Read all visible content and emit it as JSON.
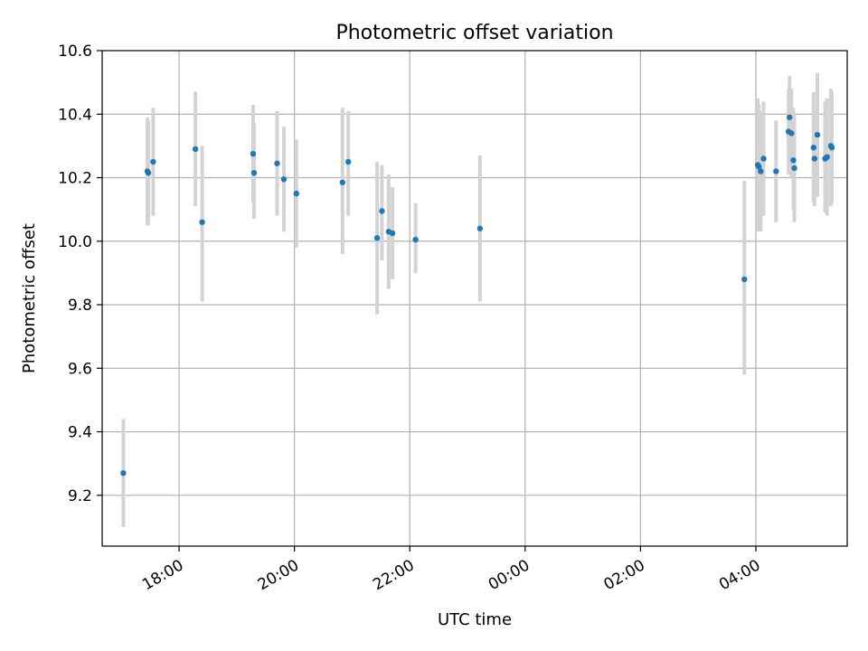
{
  "chart_data": {
    "type": "scatter",
    "title": "Photometric offset variation",
    "xlabel": "UTC time",
    "ylabel": "Photometric offset",
    "x_type": "time",
    "xlim": [
      "16:40",
      "05:35"
    ],
    "ylim": [
      9.04,
      10.6
    ],
    "x_ticks": [
      "18:00",
      "20:00",
      "22:00",
      "00:00",
      "02:00",
      "04:00"
    ],
    "y_ticks": [
      9.2,
      9.4,
      9.6,
      9.8,
      10.0,
      10.2,
      10.4,
      10.6
    ],
    "grid": true,
    "colors": {
      "point": "#1f77b4",
      "errorbar": "#d3d3d3",
      "grid": "#b0b0b0"
    },
    "points": [
      {
        "t": "17:02",
        "y": 9.27,
        "lo": 9.1,
        "hi": 9.44
      },
      {
        "t": "17:27",
        "y": 10.22,
        "lo": 10.05,
        "hi": 10.39
      },
      {
        "t": "17:28",
        "y": 10.215,
        "lo": 10.05,
        "hi": 10.38
      },
      {
        "t": "17:33",
        "y": 10.25,
        "lo": 10.08,
        "hi": 10.42
      },
      {
        "t": "18:17",
        "y": 10.29,
        "lo": 10.11,
        "hi": 10.47
      },
      {
        "t": "18:24",
        "y": 10.06,
        "lo": 9.81,
        "hi": 10.3
      },
      {
        "t": "19:17",
        "y": 10.275,
        "lo": 10.12,
        "hi": 10.43
      },
      {
        "t": "19:18",
        "y": 10.215,
        "lo": 10.07,
        "hi": 10.37
      },
      {
        "t": "19:42",
        "y": 10.245,
        "lo": 10.08,
        "hi": 10.41
      },
      {
        "t": "19:49",
        "y": 10.195,
        "lo": 10.03,
        "hi": 10.36
      },
      {
        "t": "20:02",
        "y": 10.15,
        "lo": 9.98,
        "hi": 10.32
      },
      {
        "t": "20:50",
        "y": 10.185,
        "lo": 9.96,
        "hi": 10.42
      },
      {
        "t": "20:56",
        "y": 10.25,
        "lo": 10.08,
        "hi": 10.41
      },
      {
        "t": "21:26",
        "y": 10.01,
        "lo": 9.77,
        "hi": 10.25
      },
      {
        "t": "21:31",
        "y": 10.095,
        "lo": 9.94,
        "hi": 10.24
      },
      {
        "t": "21:38",
        "y": 10.03,
        "lo": 9.85,
        "hi": 10.21
      },
      {
        "t": "21:42",
        "y": 10.025,
        "lo": 9.88,
        "hi": 10.17
      },
      {
        "t": "22:06",
        "y": 10.005,
        "lo": 9.9,
        "hi": 10.12
      },
      {
        "t": "23:13",
        "y": 10.04,
        "lo": 9.81,
        "hi": 10.27
      },
      {
        "t": "03:48",
        "y": 9.88,
        "lo": 9.58,
        "hi": 10.19
      },
      {
        "t": "04:02",
        "y": 10.24,
        "lo": 10.03,
        "hi": 10.45
      },
      {
        "t": "04:03",
        "y": 10.235,
        "lo": 10.04,
        "hi": 10.43
      },
      {
        "t": "04:05",
        "y": 10.22,
        "lo": 10.03,
        "hi": 10.41
      },
      {
        "t": "04:08",
        "y": 10.26,
        "lo": 10.08,
        "hi": 10.44
      },
      {
        "t": "04:21",
        "y": 10.22,
        "lo": 10.06,
        "hi": 10.38
      },
      {
        "t": "04:34",
        "y": 10.345,
        "lo": 10.21,
        "hi": 10.48
      },
      {
        "t": "04:35",
        "y": 10.39,
        "lo": 10.26,
        "hi": 10.52
      },
      {
        "t": "04:37",
        "y": 10.34,
        "lo": 10.2,
        "hi": 10.48
      },
      {
        "t": "04:39",
        "y": 10.255,
        "lo": 10.1,
        "hi": 10.42
      },
      {
        "t": "04:40",
        "y": 10.23,
        "lo": 10.06,
        "hi": 10.4
      },
      {
        "t": "05:00",
        "y": 10.295,
        "lo": 10.12,
        "hi": 10.47
      },
      {
        "t": "05:01",
        "y": 10.26,
        "lo": 10.11,
        "hi": 10.41
      },
      {
        "t": "05:04",
        "y": 10.335,
        "lo": 10.14,
        "hi": 10.53
      },
      {
        "t": "05:12",
        "y": 10.26,
        "lo": 10.09,
        "hi": 10.44
      },
      {
        "t": "05:14",
        "y": 10.265,
        "lo": 10.08,
        "hi": 10.45
      },
      {
        "t": "05:18",
        "y": 10.3,
        "lo": 10.11,
        "hi": 10.48
      },
      {
        "t": "05:19",
        "y": 10.295,
        "lo": 10.12,
        "hi": 10.47
      }
    ]
  }
}
